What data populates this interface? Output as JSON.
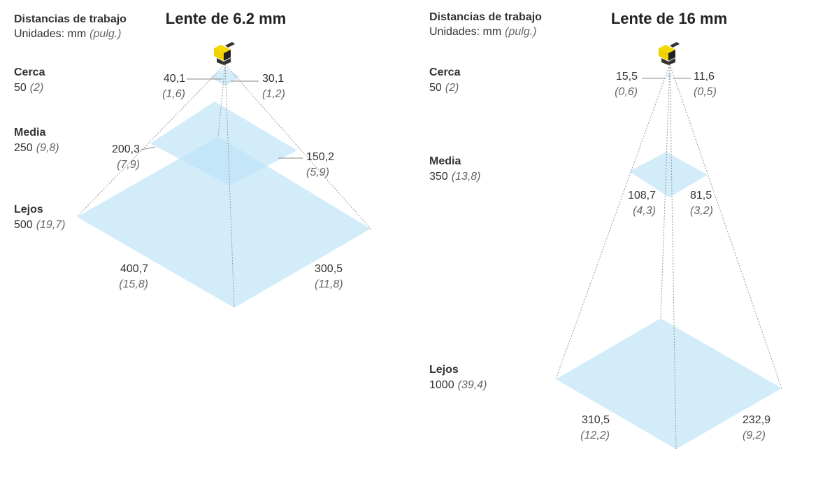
{
  "panels": [
    {
      "heading": "Distancias de trabajo",
      "units": "Unidades: mm",
      "units_alt": "(pulg.)",
      "title": "Lente de 6.2 mm",
      "distances": [
        {
          "label": "Cerca",
          "value": "50",
          "value_alt": "(2)"
        },
        {
          "label": "Media",
          "value": "250",
          "value_alt": "(9,8)"
        },
        {
          "label": "Lejos",
          "value": "500",
          "value_alt": "(19,7)"
        }
      ],
      "fields": [
        {
          "width": "40,1",
          "width_alt": "(1,6)",
          "height": "30,1",
          "height_alt": "(1,2)"
        },
        {
          "width": "200,3",
          "width_alt": "(7,9)",
          "height": "150,2",
          "height_alt": "(5,9)"
        },
        {
          "width": "400,7",
          "width_alt": "(15,8)",
          "height": "300,5",
          "height_alt": "(11,8)"
        }
      ]
    },
    {
      "heading": "Distancias de trabajo",
      "units": "Unidades: mm",
      "units_alt": "(pulg.)",
      "title": "Lente de 16 mm",
      "distances": [
        {
          "label": "Cerca",
          "value": "50",
          "value_alt": "(2)"
        },
        {
          "label": "Media",
          "value": "350",
          "value_alt": "(13,8)"
        },
        {
          "label": "Lejos",
          "value": "1000",
          "value_alt": "(39,4)"
        }
      ],
      "fields": [
        {
          "width": "15,5",
          "width_alt": "(0,6)",
          "height": "11,6",
          "height_alt": "(0,5)"
        },
        {
          "width": "108,7",
          "width_alt": "(4,3)",
          "height": "81,5",
          "height_alt": "(3,2)"
        },
        {
          "width": "310,5",
          "width_alt": "(12,2)",
          "height": "232,9",
          "height_alt": "(9,2)"
        }
      ]
    }
  ]
}
